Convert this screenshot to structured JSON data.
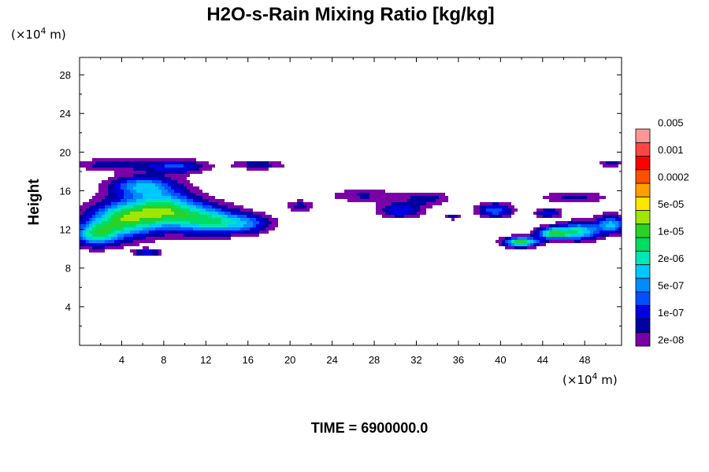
{
  "chart_data": {
    "type": "heatmap",
    "title": "H2O-s-Rain Mixing Ratio [kg/kg]",
    "ylabel": "Height",
    "x_unit": {
      "prefix": "(×10",
      "exp": "4",
      "suffix": " m)"
    },
    "y_unit": {
      "prefix": "(×10",
      "exp": "4",
      "suffix": " m)"
    },
    "xlim": [
      0,
      51.5
    ],
    "ylim": [
      0,
      29.8
    ],
    "x_ticks": [
      4,
      8,
      12,
      16,
      20,
      24,
      28,
      32,
      36,
      40,
      44,
      48
    ],
    "x_ticklabels": [
      "4",
      "8",
      "12",
      "16",
      "20",
      "24",
      "28",
      "32",
      "36",
      "40",
      "44",
      "48"
    ],
    "y_ticks": [
      4,
      8,
      12,
      16,
      20,
      24,
      28
    ],
    "y_ticklabels": [
      "4",
      "8",
      "12",
      "16",
      "20",
      "24",
      "28"
    ],
    "footer": "TIME = 6900000.0",
    "colorbar": {
      "colors": [
        "#7a00a8",
        "#0000a0",
        "#0000e0",
        "#0050ff",
        "#008cff",
        "#00c8ff",
        "#00e6b4",
        "#00dc64",
        "#28d228",
        "#a0e600",
        "#ffe600",
        "#ffa000",
        "#ff5000",
        "#ff0000",
        "#ff4646",
        "#ff9696"
      ],
      "labels": [
        "2e-08",
        "1e-07",
        "5e-07",
        "2e-06",
        "1e-05",
        "5e-05",
        "0.0002",
        "0.001",
        "0.005"
      ],
      "label_levels": [
        1,
        3,
        5,
        7,
        9,
        11,
        13,
        15,
        17
      ]
    },
    "field_features": [
      {
        "x": 4,
        "y": 13,
        "sx": 3.0,
        "sy": 1.8,
        "v": 3.2
      },
      {
        "x": 8,
        "y": 14,
        "sx": 3.2,
        "sy": 1.8,
        "v": 3.4
      },
      {
        "x": 12,
        "y": 13,
        "sx": 2.8,
        "sy": 1.4,
        "v": 2.6
      },
      {
        "x": 15.5,
        "y": 12.6,
        "sx": 2.6,
        "sy": 1.0,
        "v": 2.0
      },
      {
        "x": 1.5,
        "y": 11.5,
        "sx": 2.0,
        "sy": 1.2,
        "v": 2.6
      },
      {
        "x": 6,
        "y": 16.5,
        "sx": 3.0,
        "sy": 1.0,
        "v": 2.2
      },
      {
        "x": 9,
        "y": 18.5,
        "sx": 3.0,
        "sy": 0.7,
        "v": 1.6
      },
      {
        "x": 3,
        "y": 18.7,
        "sx": 3.0,
        "sy": 0.6,
        "v": 1.1
      },
      {
        "x": 17,
        "y": 18.7,
        "sx": 2.4,
        "sy": 0.5,
        "v": 1.0
      },
      {
        "x": 6.5,
        "y": 9.6,
        "sx": 1.2,
        "sy": 0.35,
        "v": 1.6
      },
      {
        "x": 21,
        "y": 14.4,
        "sx": 1.3,
        "sy": 0.6,
        "v": 0.9
      },
      {
        "x": 27,
        "y": 15.5,
        "sx": 3.0,
        "sy": 0.7,
        "v": 0.8
      },
      {
        "x": 30.5,
        "y": 14.0,
        "sx": 2.0,
        "sy": 0.8,
        "v": 1.5
      },
      {
        "x": 33,
        "y": 15.2,
        "sx": 2.0,
        "sy": 0.7,
        "v": 1.0
      },
      {
        "x": 35.5,
        "y": 13.3,
        "sx": 0.8,
        "sy": 0.3,
        "v": 0.9
      },
      {
        "x": 39.5,
        "y": 14.0,
        "sx": 1.6,
        "sy": 0.7,
        "v": 1.9
      },
      {
        "x": 42,
        "y": 10.7,
        "sx": 1.6,
        "sy": 0.5,
        "v": 3.6
      },
      {
        "x": 45,
        "y": 11.6,
        "sx": 1.5,
        "sy": 0.6,
        "v": 3.3
      },
      {
        "x": 47.5,
        "y": 11.8,
        "sx": 1.8,
        "sy": 0.9,
        "v": 2.8
      },
      {
        "x": 50.5,
        "y": 12.5,
        "sx": 1.4,
        "sy": 0.9,
        "v": 2.4
      },
      {
        "x": 44.5,
        "y": 13.7,
        "sx": 1.2,
        "sy": 0.5,
        "v": 1.4
      },
      {
        "x": 47,
        "y": 15.3,
        "sx": 3.0,
        "sy": 0.6,
        "v": 0.9
      },
      {
        "x": 50.5,
        "y": 18.8,
        "sx": 1.2,
        "sy": 0.3,
        "v": 1.0
      }
    ]
  }
}
